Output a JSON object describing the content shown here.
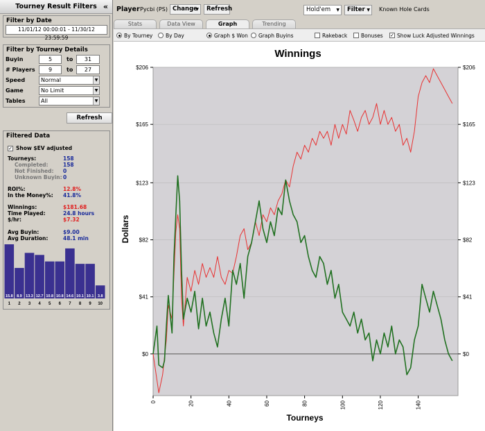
{
  "left_panel": {
    "title": "Tourney Result Filters",
    "collapse_glyph": "«",
    "filter_by_date": {
      "title": "Filter by Date",
      "range": "11/01/12 00:00:01 - 11/30/12 23:59:59"
    },
    "filter_by_details": {
      "title": "Filter by Tourney Details",
      "buyin_label": "Buyin",
      "buyin_from": "5",
      "buyin_to": "31",
      "to_label": "to",
      "players_label": "# Players",
      "players_from": "9",
      "players_to": "27",
      "speed_label": "Speed",
      "speed_value": "Normal",
      "game_label": "Game",
      "game_value": "No Limit",
      "tables_label": "Tables",
      "tables_value": "All"
    },
    "refresh_label": "Refresh",
    "filtered_data": {
      "title": "Filtered Data",
      "show_ev_label": "Show $EV adjusted",
      "show_ev_checked": true,
      "tourneys_label": "Tourneys:",
      "tourneys_value": "158",
      "completed_label": "Completed:",
      "completed_value": "158",
      "not_finished_label": "Not Finished:",
      "not_finished_value": "0",
      "unknown_buyin_label": "Unknown Buyin:",
      "unknown_buyin_value": "0",
      "roi_label": "ROI%:",
      "roi_value": "12.8%",
      "itm_label": "In the Money%:",
      "itm_value": "41.8%",
      "winnings_label": "Winnings:",
      "winnings_value": "$181.68",
      "time_played_label": "Time Played:",
      "time_played_value": "24.8 hours",
      "per_hr_label": "$/hr:",
      "per_hr_value": "$7.32",
      "avg_buyin_label": "Avg Buyin:",
      "avg_buyin_value": "$9.00",
      "avg_duration_label": "Avg Duration:",
      "avg_duration_value": "48.1 min"
    },
    "histogram": {
      "positions": [
        "1",
        "2",
        "3",
        "4",
        "5",
        "6",
        "7",
        "8",
        "9",
        "10"
      ],
      "values": [
        15.8,
        8.9,
        13.3,
        12.7,
        10.8,
        10.8,
        14.6,
        10.1,
        10.1,
        3.8
      ],
      "labels": [
        "15.8",
        "8.9",
        "13.3",
        "12.7",
        "10.8",
        "10.8",
        "14.6",
        "10.1",
        "10.1",
        "3.8"
      ],
      "bar_color": "#3a3090"
    }
  },
  "top_bar": {
    "player_label": "Player",
    "player_name": "Pycbi (PS)",
    "change_label": "Change",
    "refresh_label": "Refresh",
    "game_select": "Hold'em",
    "filter_label": "Filter",
    "known_hole_cards": "Known Hole Cards"
  },
  "tabs": [
    {
      "label": "Stats",
      "active": false
    },
    {
      "label": "Data View",
      "active": false
    },
    {
      "label": "Graph",
      "active": true
    },
    {
      "label": "Trending",
      "active": false
    }
  ],
  "options": {
    "by_tourney": {
      "label": "By Tourney",
      "selected": true
    },
    "by_day": {
      "label": "By Day",
      "selected": false
    },
    "graph_won": {
      "label": "Graph $ Won",
      "selected": true
    },
    "graph_buyins": {
      "label": "Graph Buyins",
      "selected": false
    },
    "rakeback": {
      "label": "Rakeback",
      "checked": false
    },
    "bonuses": {
      "label": "Bonuses",
      "checked": false
    },
    "luck_adjusted": {
      "label": "Show Luck Adjusted Winnings",
      "checked": true
    }
  },
  "chart_data": {
    "type": "line",
    "title": "Winnings",
    "xlabel": "Tourneys",
    "ylabel": "Dollars",
    "xlim": [
      0,
      161
    ],
    "ylim": [
      -30,
      206
    ],
    "x_ticks": [
      0,
      20,
      40,
      60,
      80,
      100,
      120,
      140
    ],
    "y_ticks": [
      0,
      41,
      82,
      123,
      165,
      206
    ],
    "y_tick_labels": [
      "$0",
      "$41",
      "$82",
      "$123",
      "$165",
      "$206"
    ],
    "plot_background": "#d4d2d6",
    "series": [
      {
        "color": "#e83030",
        "values": [
          [
            0,
            0
          ],
          [
            3,
            -28
          ],
          [
            5,
            -15
          ],
          [
            7,
            10
          ],
          [
            8,
            35
          ],
          [
            10,
            25
          ],
          [
            12,
            88
          ],
          [
            13,
            100
          ],
          [
            14,
            90
          ],
          [
            15,
            40
          ],
          [
            16,
            20
          ],
          [
            18,
            55
          ],
          [
            20,
            45
          ],
          [
            22,
            60
          ],
          [
            24,
            50
          ],
          [
            26,
            65
          ],
          [
            28,
            55
          ],
          [
            30,
            62
          ],
          [
            32,
            55
          ],
          [
            34,
            70
          ],
          [
            36,
            55
          ],
          [
            38,
            50
          ],
          [
            40,
            60
          ],
          [
            42,
            58
          ],
          [
            44,
            70
          ],
          [
            46,
            85
          ],
          [
            48,
            90
          ],
          [
            50,
            75
          ],
          [
            52,
            80
          ],
          [
            54,
            95
          ],
          [
            56,
            85
          ],
          [
            58,
            100
          ],
          [
            60,
            95
          ],
          [
            62,
            105
          ],
          [
            64,
            100
          ],
          [
            66,
            110
          ],
          [
            68,
            115
          ],
          [
            70,
            125
          ],
          [
            72,
            120
          ],
          [
            74,
            135
          ],
          [
            76,
            145
          ],
          [
            78,
            140
          ],
          [
            80,
            150
          ],
          [
            82,
            145
          ],
          [
            84,
            155
          ],
          [
            86,
            150
          ],
          [
            88,
            160
          ],
          [
            90,
            155
          ],
          [
            92,
            160
          ],
          [
            94,
            150
          ],
          [
            96,
            165
          ],
          [
            98,
            155
          ],
          [
            100,
            165
          ],
          [
            102,
            158
          ],
          [
            104,
            175
          ],
          [
            106,
            168
          ],
          [
            108,
            160
          ],
          [
            110,
            170
          ],
          [
            112,
            175
          ],
          [
            114,
            165
          ],
          [
            116,
            170
          ],
          [
            118,
            180
          ],
          [
            120,
            165
          ],
          [
            122,
            175
          ],
          [
            124,
            165
          ],
          [
            126,
            170
          ],
          [
            128,
            160
          ],
          [
            130,
            165
          ],
          [
            132,
            150
          ],
          [
            134,
            155
          ],
          [
            136,
            145
          ],
          [
            138,
            160
          ],
          [
            140,
            185
          ],
          [
            142,
            195
          ],
          [
            144,
            200
          ],
          [
            146,
            195
          ],
          [
            148,
            205
          ],
          [
            150,
            200
          ],
          [
            152,
            195
          ],
          [
            154,
            190
          ],
          [
            156,
            185
          ],
          [
            158,
            180
          ]
        ]
      },
      {
        "color": "#207020",
        "values": [
          [
            0,
            0
          ],
          [
            2,
            20
          ],
          [
            3,
            -8
          ],
          [
            5,
            -10
          ],
          [
            6,
            -5
          ],
          [
            7,
            20
          ],
          [
            8,
            42
          ],
          [
            10,
            15
          ],
          [
            11,
            70
          ],
          [
            12,
            100
          ],
          [
            13,
            128
          ],
          [
            14,
            110
          ],
          [
            15,
            60
          ],
          [
            16,
            25
          ],
          [
            18,
            40
          ],
          [
            20,
            30
          ],
          [
            22,
            45
          ],
          [
            24,
            18
          ],
          [
            26,
            40
          ],
          [
            28,
            20
          ],
          [
            30,
            30
          ],
          [
            32,
            15
          ],
          [
            34,
            5
          ],
          [
            36,
            25
          ],
          [
            38,
            40
          ],
          [
            40,
            20
          ],
          [
            42,
            60
          ],
          [
            44,
            50
          ],
          [
            46,
            65
          ],
          [
            48,
            40
          ],
          [
            50,
            70
          ],
          [
            52,
            80
          ],
          [
            54,
            95
          ],
          [
            56,
            110
          ],
          [
            58,
            90
          ],
          [
            60,
            80
          ],
          [
            62,
            95
          ],
          [
            64,
            85
          ],
          [
            66,
            105
          ],
          [
            68,
            100
          ],
          [
            70,
            125
          ],
          [
            72,
            110
          ],
          [
            74,
            100
          ],
          [
            76,
            95
          ],
          [
            78,
            80
          ],
          [
            80,
            85
          ],
          [
            82,
            70
          ],
          [
            84,
            60
          ],
          [
            86,
            55
          ],
          [
            88,
            70
          ],
          [
            90,
            65
          ],
          [
            92,
            50
          ],
          [
            94,
            60
          ],
          [
            96,
            40
          ],
          [
            98,
            50
          ],
          [
            100,
            30
          ],
          [
            102,
            25
          ],
          [
            104,
            20
          ],
          [
            106,
            30
          ],
          [
            108,
            15
          ],
          [
            110,
            25
          ],
          [
            112,
            10
          ],
          [
            114,
            15
          ],
          [
            116,
            -5
          ],
          [
            118,
            10
          ],
          [
            120,
            0
          ],
          [
            122,
            15
          ],
          [
            124,
            5
          ],
          [
            126,
            20
          ],
          [
            128,
            0
          ],
          [
            130,
            10
          ],
          [
            132,
            5
          ],
          [
            134,
            -15
          ],
          [
            136,
            -10
          ],
          [
            138,
            10
          ],
          [
            140,
            20
          ],
          [
            142,
            50
          ],
          [
            144,
            40
          ],
          [
            146,
            30
          ],
          [
            148,
            45
          ],
          [
            150,
            35
          ],
          [
            152,
            25
          ],
          [
            154,
            10
          ],
          [
            156,
            0
          ],
          [
            158,
            -5
          ]
        ]
      }
    ]
  }
}
